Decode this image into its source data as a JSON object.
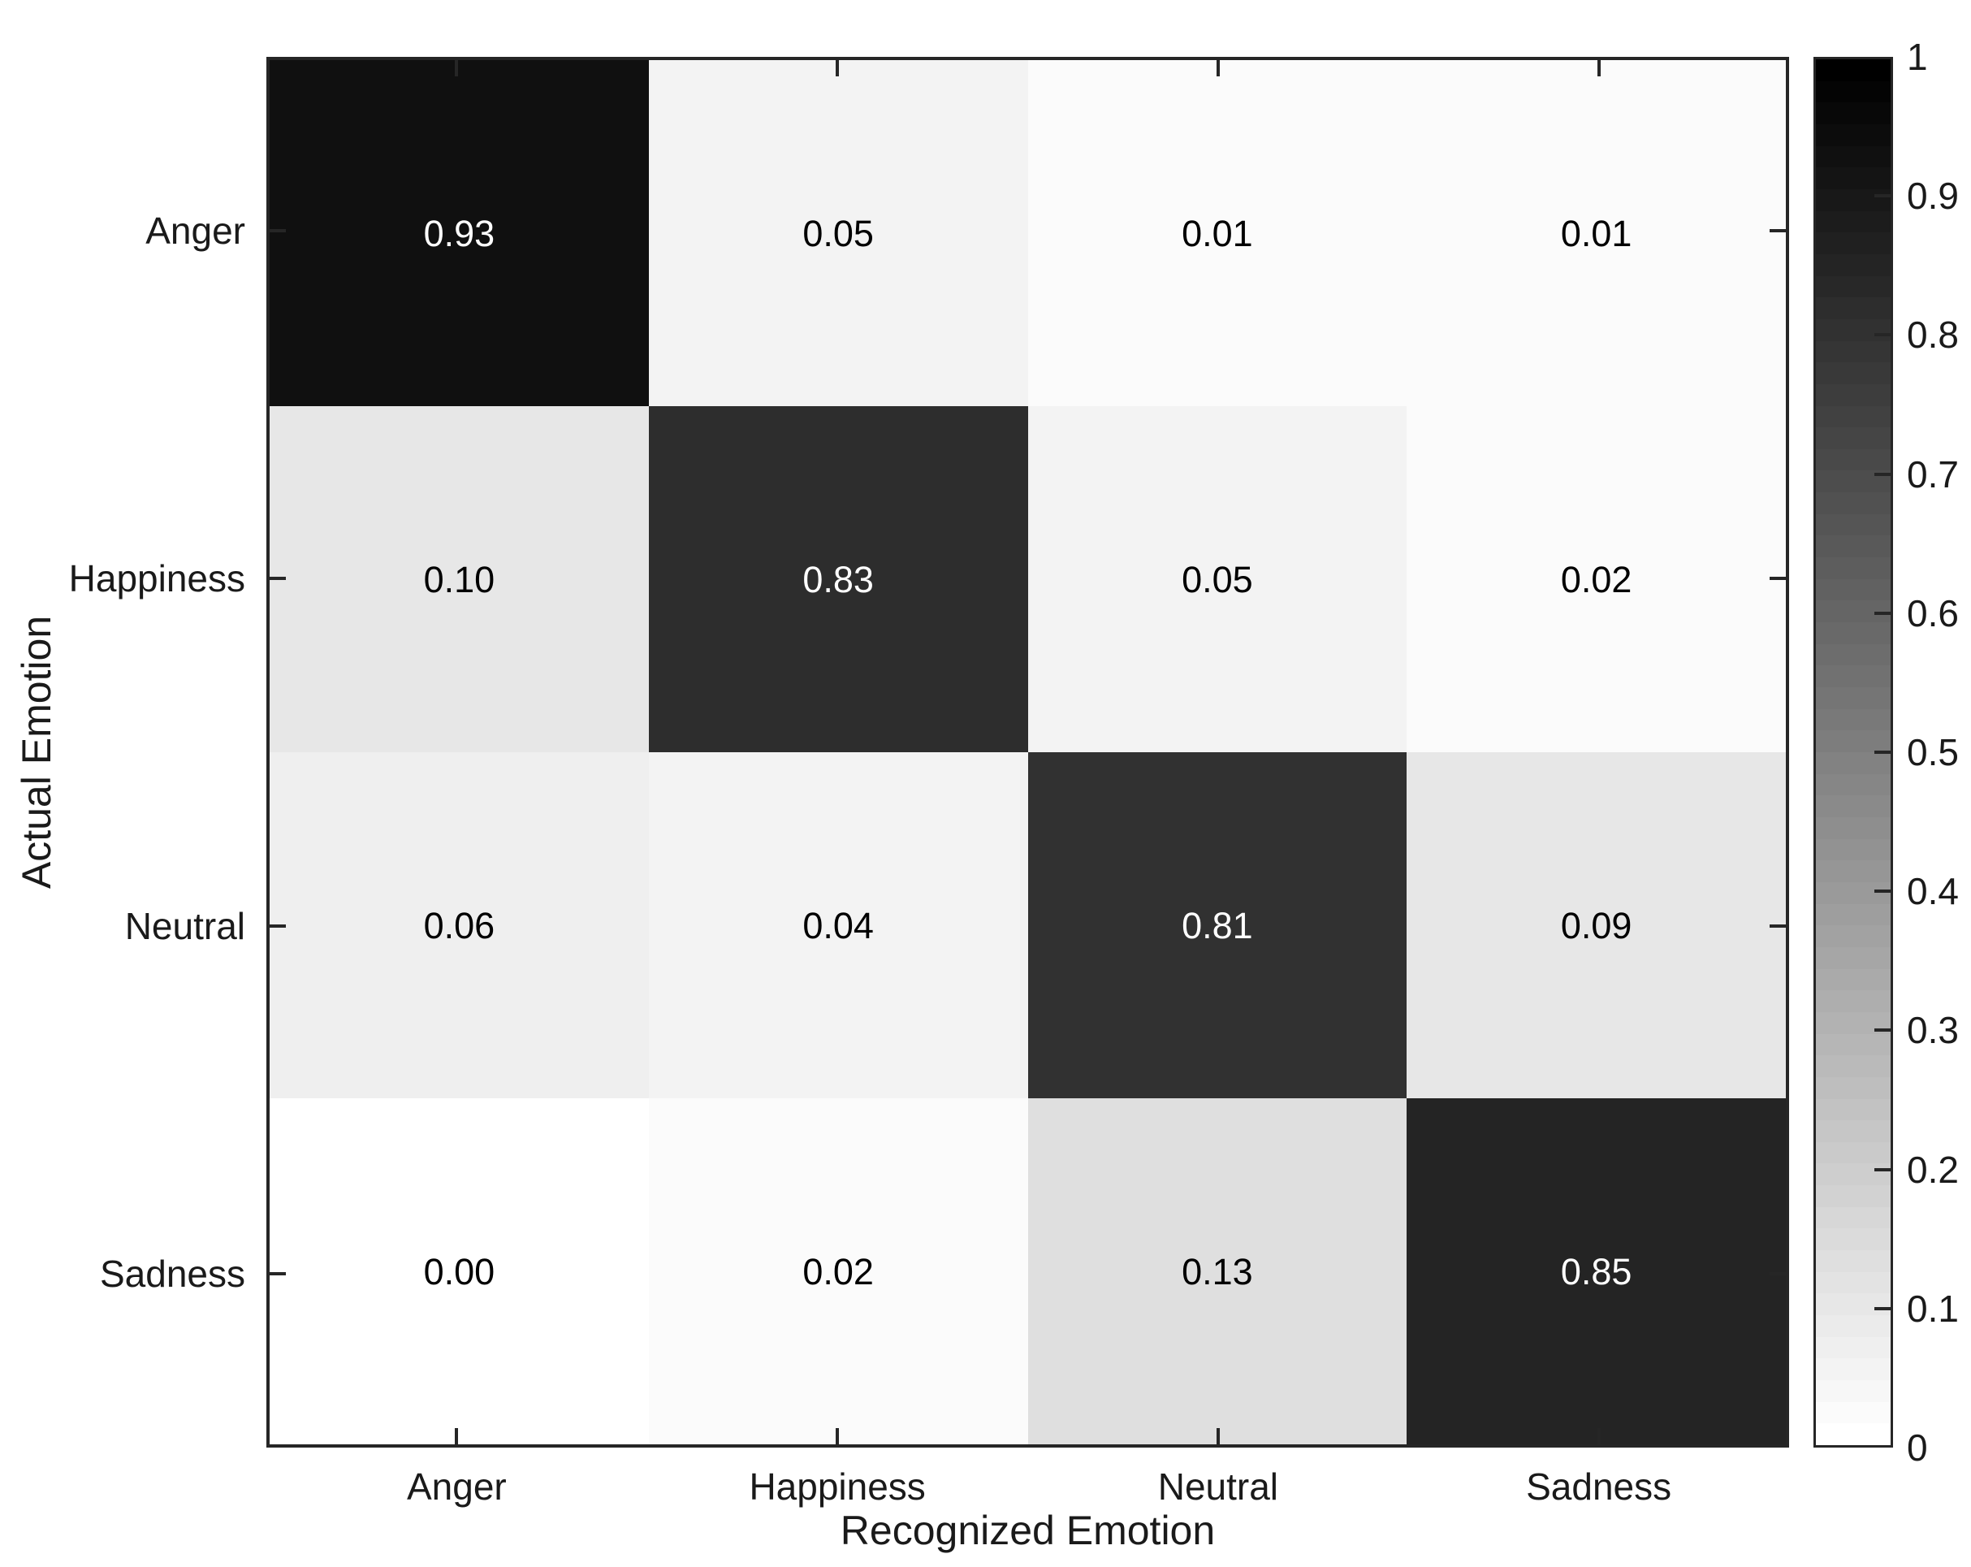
{
  "figure": {
    "background": "#ffffff",
    "axis_color": "#262626",
    "label_color": "#1a1a1a",
    "cell_text_dark": "#000000",
    "cell_text_light": "#ffffff"
  },
  "chart_data": {
    "type": "heatmap",
    "subtype": "confusion-matrix",
    "xlabel": "Recognized Emotion",
    "ylabel": "Actual Emotion",
    "x_categories": [
      "Anger",
      "Happiness",
      "Neutral",
      "Sadness"
    ],
    "y_categories": [
      "Anger",
      "Happiness",
      "Neutral",
      "Sadness"
    ],
    "values": [
      [
        0.93,
        0.05,
        0.01,
        0.01
      ],
      [
        0.1,
        0.83,
        0.05,
        0.02
      ],
      [
        0.06,
        0.04,
        0.81,
        0.09
      ],
      [
        0.0,
        0.02,
        0.13,
        0.85
      ]
    ],
    "cell_labels": [
      [
        "0.93",
        "0.05",
        "0.01",
        "0.01"
      ],
      [
        "0.10",
        "0.83",
        "0.05",
        "0.02"
      ],
      [
        "0.06",
        "0.04",
        "0.81",
        "0.09"
      ],
      [
        "0.00",
        "0.02",
        "0.13",
        "0.85"
      ]
    ],
    "value_range": [
      0,
      1
    ],
    "colormap": "gray-reversed",
    "colormap_levels": 64,
    "grid": false,
    "colorbar": {
      "position": "right",
      "min": 0,
      "max": 1,
      "tick_labels": [
        "1",
        "0.9",
        "0.8",
        "0.7",
        "0.6",
        "0.5",
        "0.4",
        "0.3",
        "0.2",
        "0.1",
        "0"
      ]
    }
  }
}
